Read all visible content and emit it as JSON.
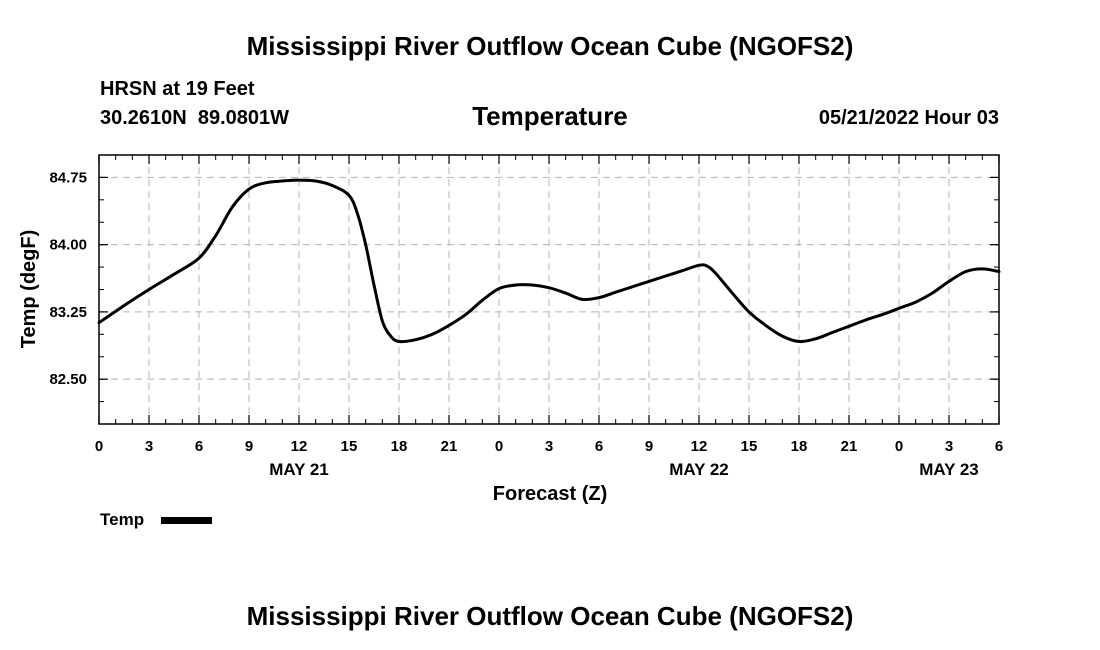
{
  "page": {
    "title": "Mississippi River Outflow Ocean Cube (NGOFS2)",
    "footer_title": "Mississippi River Outflow Ocean Cube (NGOFS2)",
    "station": "HRSN at 19 Feet",
    "location": "30.2610N  89.0801W",
    "datetime": "05/21/2022 Hour 03"
  },
  "chart_data": {
    "type": "line",
    "title": "Temperature",
    "xlabel": "Forecast (Z)",
    "ylabel": "Temp (degF)",
    "xlim": [
      0,
      54
    ],
    "ylim": [
      82.0,
      85.0
    ],
    "grid": true,
    "yticks": [
      82.5,
      83.25,
      84.0,
      84.75
    ],
    "ytick_labels": [
      "82.50",
      "83.25",
      "84.00",
      "84.75"
    ],
    "xticks": [
      0,
      3,
      6,
      9,
      12,
      15,
      18,
      21,
      24,
      27,
      30,
      33,
      36,
      39,
      42,
      45,
      48,
      51,
      54
    ],
    "xtick_labels": [
      "0",
      "3",
      "6",
      "9",
      "12",
      "15",
      "18",
      "21",
      "0",
      "3",
      "6",
      "9",
      "12",
      "15",
      "18",
      "21",
      "0",
      "3",
      "6"
    ],
    "date_labels": [
      {
        "x": 12,
        "label": "MAY 21"
      },
      {
        "x": 36,
        "label": "MAY 22"
      },
      {
        "x": 51,
        "label": "MAY 23"
      }
    ],
    "series": [
      {
        "name": "Temp",
        "color": "#000000",
        "x": [
          0,
          1.5,
          3,
          4.5,
          6,
          7,
          8,
          9,
          10,
          11,
          12,
          13,
          14,
          15,
          15.5,
          16,
          16.5,
          17,
          17.5,
          18,
          19,
          20,
          21,
          22,
          23,
          24,
          25,
          26,
          27,
          28,
          29,
          30,
          31,
          32,
          33,
          34,
          35,
          36,
          36.5,
          37,
          38,
          39,
          40,
          41,
          42,
          43,
          44,
          45,
          46,
          47,
          48,
          49,
          50,
          51,
          52,
          53,
          54
        ],
        "values": [
          83.13,
          83.32,
          83.5,
          83.67,
          83.85,
          84.1,
          84.42,
          84.62,
          84.69,
          84.71,
          84.72,
          84.71,
          84.66,
          84.55,
          84.35,
          84.0,
          83.55,
          83.15,
          82.98,
          82.92,
          82.94,
          83.0,
          83.1,
          83.22,
          83.38,
          83.51,
          83.55,
          83.55,
          83.52,
          83.46,
          83.39,
          83.41,
          83.47,
          83.53,
          83.59,
          83.65,
          83.71,
          83.77,
          83.76,
          83.68,
          83.46,
          83.25,
          83.1,
          82.98,
          82.92,
          82.95,
          83.02,
          83.09,
          83.16,
          83.22,
          83.29,
          83.36,
          83.46,
          83.59,
          83.7,
          83.73,
          83.7
        ]
      }
    ],
    "legend": [
      {
        "label": "Temp",
        "color": "#000000"
      }
    ]
  }
}
